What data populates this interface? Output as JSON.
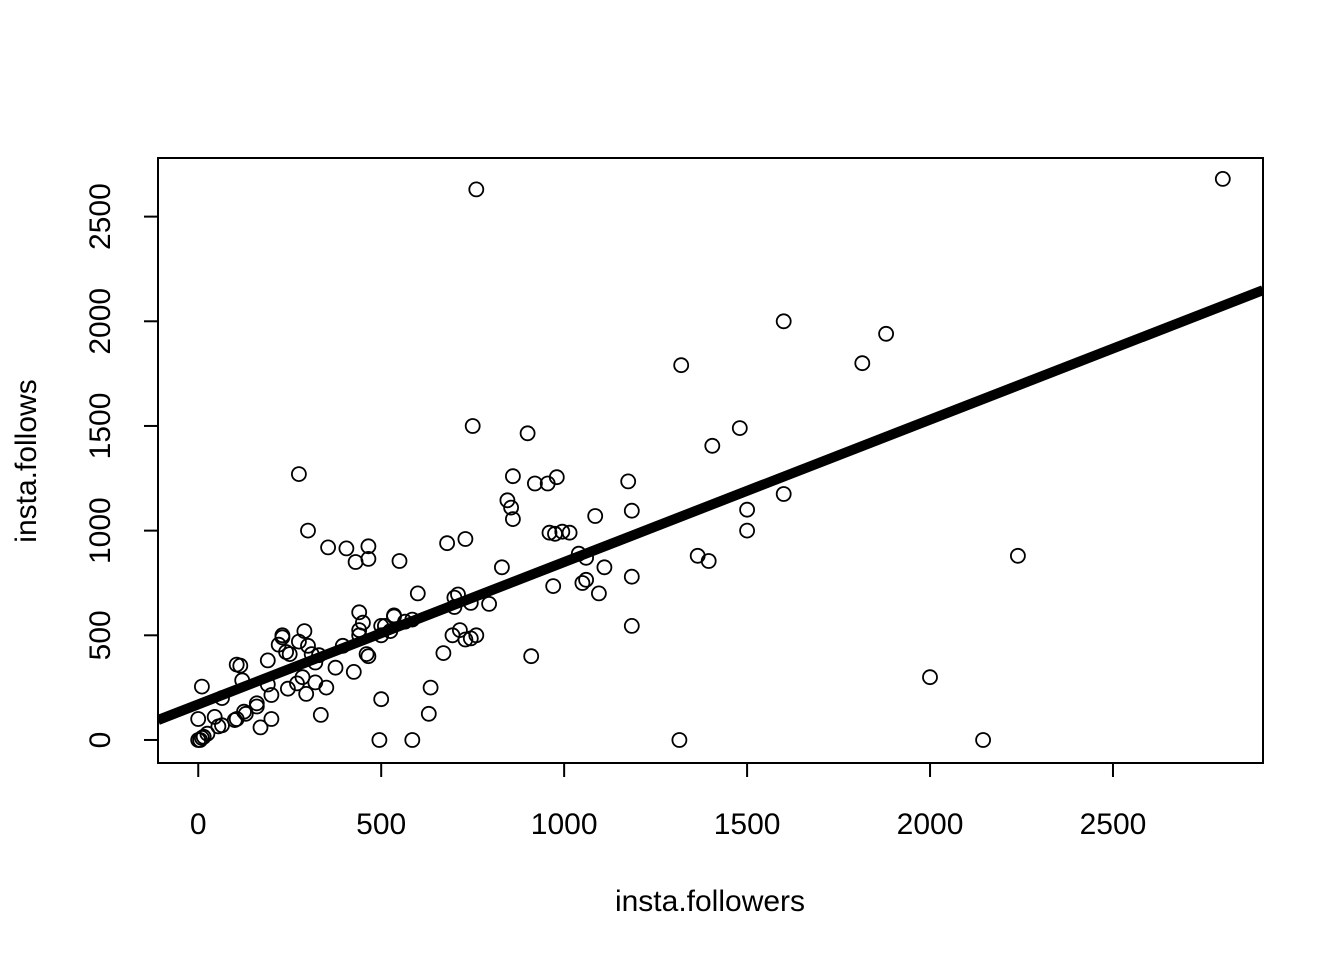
{
  "chart_data": {
    "type": "scatter",
    "title": "",
    "xlabel": "insta.followers",
    "ylabel": "insta.follows",
    "xlim": [
      -110,
      2910
    ],
    "ylim": [
      -110,
      2780
    ],
    "xticks": [
      0,
      500,
      1000,
      1500,
      2000,
      2500
    ],
    "yticks": [
      0,
      500,
      1000,
      1500,
      2000,
      2500
    ],
    "grid": false,
    "marker": "open-circle",
    "regression_line": {
      "intercept": 170,
      "slope": 0.68
    },
    "points": [
      [
        2800,
        2680
      ],
      [
        760,
        2630
      ],
      [
        1600,
        2000
      ],
      [
        1880,
        1940
      ],
      [
        1815,
        1800
      ],
      [
        1320,
        1790
      ],
      [
        1480,
        1490
      ],
      [
        750,
        1500
      ],
      [
        900,
        1465
      ],
      [
        1405,
        1405
      ],
      [
        275,
        1270
      ],
      [
        860,
        1260
      ],
      [
        980,
        1255
      ],
      [
        920,
        1225
      ],
      [
        955,
        1225
      ],
      [
        1175,
        1235
      ],
      [
        1600,
        1175
      ],
      [
        845,
        1145
      ],
      [
        855,
        1110
      ],
      [
        1185,
        1095
      ],
      [
        1500,
        1100
      ],
      [
        1085,
        1070
      ],
      [
        860,
        1055
      ],
      [
        300,
        1000
      ],
      [
        960,
        990
      ],
      [
        975,
        985
      ],
      [
        1015,
        990
      ],
      [
        995,
        995
      ],
      [
        1500,
        1000
      ],
      [
        730,
        960
      ],
      [
        680,
        940
      ],
      [
        355,
        920
      ],
      [
        405,
        915
      ],
      [
        465,
        925
      ],
      [
        430,
        850
      ],
      [
        465,
        865
      ],
      [
        550,
        855
      ],
      [
        1040,
        890
      ],
      [
        1060,
        870
      ],
      [
        1365,
        880
      ],
      [
        1395,
        855
      ],
      [
        2240,
        880
      ],
      [
        830,
        825
      ],
      [
        1110,
        825
      ],
      [
        1185,
        780
      ],
      [
        1060,
        765
      ],
      [
        1050,
        750
      ],
      [
        970,
        735
      ],
      [
        1095,
        700
      ],
      [
        600,
        700
      ],
      [
        710,
        695
      ],
      [
        700,
        680
      ],
      [
        795,
        650
      ],
      [
        745,
        655
      ],
      [
        700,
        635
      ],
      [
        440,
        610
      ],
      [
        535,
        590
      ],
      [
        535,
        595
      ],
      [
        585,
        575
      ],
      [
        565,
        565
      ],
      [
        450,
        560
      ],
      [
        500,
        545
      ],
      [
        510,
        545
      ],
      [
        1185,
        545
      ],
      [
        290,
        520
      ],
      [
        440,
        525
      ],
      [
        525,
        520
      ],
      [
        715,
        525
      ],
      [
        695,
        500
      ],
      [
        760,
        500
      ],
      [
        745,
        485
      ],
      [
        730,
        480
      ],
      [
        230,
        500
      ],
      [
        230,
        490
      ],
      [
        275,
        470
      ],
      [
        500,
        500
      ],
      [
        440,
        500
      ],
      [
        220,
        455
      ],
      [
        300,
        450
      ],
      [
        395,
        450
      ],
      [
        240,
        420
      ],
      [
        250,
        410
      ],
      [
        310,
        410
      ],
      [
        330,
        405
      ],
      [
        460,
        410
      ],
      [
        465,
        400
      ],
      [
        670,
        415
      ],
      [
        910,
        400
      ],
      [
        320,
        370
      ],
      [
        190,
        380
      ],
      [
        375,
        345
      ],
      [
        105,
        360
      ],
      [
        115,
        355
      ],
      [
        425,
        325
      ],
      [
        120,
        285
      ],
      [
        285,
        300
      ],
      [
        320,
        275
      ],
      [
        270,
        270
      ],
      [
        190,
        265
      ],
      [
        350,
        250
      ],
      [
        245,
        245
      ],
      [
        635,
        250
      ],
      [
        10,
        255
      ],
      [
        200,
        215
      ],
      [
        295,
        220
      ],
      [
        500,
        195
      ],
      [
        65,
        200
      ],
      [
        160,
        175
      ],
      [
        160,
        160
      ],
      [
        125,
        135
      ],
      [
        130,
        125
      ],
      [
        100,
        95
      ],
      [
        105,
        100
      ],
      [
        200,
        100
      ],
      [
        335,
        120
      ],
      [
        630,
        125
      ],
      [
        45,
        110
      ],
      [
        55,
        65
      ],
      [
        65,
        70
      ],
      [
        170,
        60
      ],
      [
        0,
        100
      ],
      [
        25,
        30
      ],
      [
        15,
        15
      ],
      [
        10,
        10
      ],
      [
        0,
        0
      ],
      [
        5,
        0
      ],
      [
        495,
        0
      ],
      [
        585,
        0
      ],
      [
        1315,
        0
      ],
      [
        2145,
        0
      ],
      [
        2000,
        300
      ]
    ]
  }
}
